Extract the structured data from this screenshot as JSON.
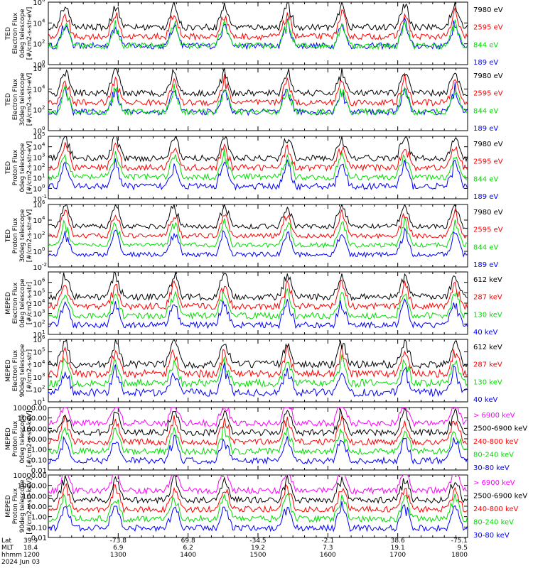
{
  "chart_data": [
    {
      "type": "line",
      "ylabel": [
        "TED",
        "Electron Flux",
        "0deg telescope",
        "[#/cm2-s-str-eV]"
      ],
      "y_log": true,
      "ylim_exp": [
        0,
        6
      ],
      "yticks": [
        {
          "base": "10",
          "exp": "0"
        },
        {
          "base": "10",
          "exp": "2"
        },
        {
          "base": "10",
          "exp": "4"
        },
        {
          "base": "10",
          "exp": "6"
        }
      ],
      "series": [
        {
          "name": "7980 eV",
          "color": "#000000"
        },
        {
          "name": "2595 eV",
          "color": "#ff0000"
        },
        {
          "name": "844 eV",
          "color": "#00dd00"
        },
        {
          "name": "189 eV",
          "color": "#0000ff"
        }
      ]
    },
    {
      "type": "line",
      "ylabel": [
        "TED",
        "Electron Flux",
        "30deg telescope",
        "[#/cm2-s-str-eV]"
      ],
      "y_log": true,
      "ylim_exp": [
        0,
        6
      ],
      "yticks": [
        {
          "base": "10",
          "exp": "0"
        },
        {
          "base": "10",
          "exp": "2"
        },
        {
          "base": "10",
          "exp": "4"
        },
        {
          "base": "10",
          "exp": "6"
        }
      ],
      "series": [
        {
          "name": "7980 eV",
          "color": "#000000"
        },
        {
          "name": "2595 eV",
          "color": "#ff0000"
        },
        {
          "name": "844 eV",
          "color": "#00dd00"
        },
        {
          "name": "189 eV",
          "color": "#0000ff"
        }
      ]
    },
    {
      "type": "line",
      "ylabel": [
        "TED",
        "Proton Flux",
        "0deg telescope",
        "[#/cm2-s-str-eV]"
      ],
      "y_log": true,
      "ylim_exp": [
        -1,
        5
      ],
      "yticks": [
        {
          "base": "10",
          "exp": "-1"
        },
        {
          "base": "10",
          "exp": "0"
        },
        {
          "base": "10",
          "exp": "1"
        },
        {
          "base": "10",
          "exp": "2"
        },
        {
          "base": "10",
          "exp": "3"
        },
        {
          "base": "10",
          "exp": "4"
        },
        {
          "base": "10",
          "exp": "5"
        }
      ],
      "series": [
        {
          "name": "7980 eV",
          "color": "#000000"
        },
        {
          "name": "2595 eV",
          "color": "#ff0000"
        },
        {
          "name": "844 eV",
          "color": "#00dd00"
        },
        {
          "name": "189 eV",
          "color": "#0000ff"
        }
      ]
    },
    {
      "type": "line",
      "ylabel": [
        "TED",
        "Proton Flux",
        "30deg telescope",
        "[#/cm2-s-str-eV]"
      ],
      "y_log": true,
      "ylim_exp": [
        -2,
        6
      ],
      "yticks": [
        {
          "base": "10",
          "exp": "-2"
        },
        {
          "base": "10",
          "exp": "0"
        },
        {
          "base": "10",
          "exp": "2"
        },
        {
          "base": "10",
          "exp": "4"
        },
        {
          "base": "10",
          "exp": "6"
        }
      ],
      "series": [
        {
          "name": "7980 eV",
          "color": "#000000"
        },
        {
          "name": "2595 eV",
          "color": "#ff0000"
        },
        {
          "name": "844 eV",
          "color": "#00dd00"
        },
        {
          "name": "189 eV",
          "color": "#0000ff"
        }
      ]
    },
    {
      "type": "line",
      "ylabel": [
        "MEPED",
        "Electron Flux",
        "0deg telescope",
        "[#/cm2-s-str]"
      ],
      "y_log": true,
      "ylim_exp": [
        1,
        7
      ],
      "yticks": [
        {
          "base": "10",
          "exp": "1"
        },
        {
          "base": "10",
          "exp": "2"
        },
        {
          "base": "10",
          "exp": "3"
        },
        {
          "base": "10",
          "exp": "4"
        },
        {
          "base": "10",
          "exp": "5"
        },
        {
          "base": "10",
          "exp": "6"
        }
      ],
      "series": [
        {
          "name": "612 keV",
          "color": "#000000"
        },
        {
          "name": "287 keV",
          "color": "#ff0000"
        },
        {
          "name": "130 keV",
          "color": "#00dd00"
        },
        {
          "name": "40 keV",
          "color": "#0000ff"
        }
      ]
    },
    {
      "type": "line",
      "ylabel": [
        "MEPED",
        "Electron Flux",
        "90deg telescope",
        "[#/cm2-s-str]"
      ],
      "y_log": true,
      "ylim_exp": [
        1,
        6
      ],
      "yticks": [
        {
          "base": "10",
          "exp": "1"
        },
        {
          "base": "10",
          "exp": "2"
        },
        {
          "base": "10",
          "exp": "3"
        },
        {
          "base": "10",
          "exp": "4"
        },
        {
          "base": "10",
          "exp": "5"
        },
        {
          "base": "10",
          "exp": "6"
        }
      ],
      "series": [
        {
          "name": "612 keV",
          "color": "#000000"
        },
        {
          "name": "287 keV",
          "color": "#ff0000"
        },
        {
          "name": "130 keV",
          "color": "#00dd00"
        },
        {
          "name": "40 keV",
          "color": "#0000ff"
        }
      ]
    },
    {
      "type": "line",
      "ylabel": [
        "MEPED",
        "Proton Flux",
        "0deg telescope",
        "[#/cm2-s-str-keV]"
      ],
      "y_log": true,
      "ylim_exp": [
        -2,
        4
      ],
      "yticks": [
        {
          "base": "",
          "exp": "0.01"
        },
        {
          "base": "",
          "exp": "0.10"
        },
        {
          "base": "",
          "exp": "1.00"
        },
        {
          "base": "",
          "exp": "10.00"
        },
        {
          "base": "",
          "exp": "100.00"
        },
        {
          "base": "",
          "exp": "1000.00"
        },
        {
          "base": "",
          "exp": "10000.00"
        }
      ],
      "series": [
        {
          "name": "> 6900 keV",
          "color": "#ff00ff"
        },
        {
          "name": "2500-6900 keV",
          "color": "#000000"
        },
        {
          "name": "240-800 keV",
          "color": "#ff0000"
        },
        {
          "name": "80-240 keV",
          "color": "#00dd00"
        },
        {
          "name": "30-80 keV",
          "color": "#0000ff"
        }
      ]
    },
    {
      "type": "line",
      "ylabel": [
        "MEPED",
        "Proton Flux",
        "90deg telescope",
        "[#/cm2-s-str-keV]"
      ],
      "y_log": true,
      "ylim_exp": [
        -2,
        4
      ],
      "yticks": [
        {
          "base": "",
          "exp": "0.01"
        },
        {
          "base": "",
          "exp": "0.10"
        },
        {
          "base": "",
          "exp": "1.00"
        },
        {
          "base": "",
          "exp": "10.00"
        },
        {
          "base": "",
          "exp": "100.00"
        },
        {
          "base": "",
          "exp": "1000.00"
        },
        {
          "base": "",
          "exp": "10000.00"
        }
      ],
      "series": [
        {
          "name": "> 6900 keV",
          "color": "#ff00ff"
        },
        {
          "name": "2500-6900 keV",
          "color": "#000000"
        },
        {
          "name": "240-800 keV",
          "color": "#ff0000"
        },
        {
          "name": "80-240 keV",
          "color": "#00dd00"
        },
        {
          "name": "30-80 keV",
          "color": "#0000ff"
        }
      ]
    }
  ],
  "x_axis": {
    "row_labels": [
      "Lat",
      "MLT",
      "hhmm"
    ],
    "ticks": [
      {
        "lat": "39.9",
        "mlt": "18.4",
        "hhmm": "1200"
      },
      {
        "lat": "-73.8",
        "mlt": "6.9",
        "hhmm": "1300"
      },
      {
        "lat": "69.8",
        "mlt": "6.2",
        "hhmm": "1400"
      },
      {
        "lat": "-34.5",
        "mlt": "19.2",
        "hhmm": "1500"
      },
      {
        "lat": "-2.1",
        "mlt": "7.3",
        "hhmm": "1600"
      },
      {
        "lat": "38.6",
        "mlt": "19.1",
        "hhmm": "1700"
      },
      {
        "lat": "-75.1",
        "mlt": "9.5",
        "hhmm": "1800"
      }
    ],
    "date": "2024 Jun 03"
  }
}
